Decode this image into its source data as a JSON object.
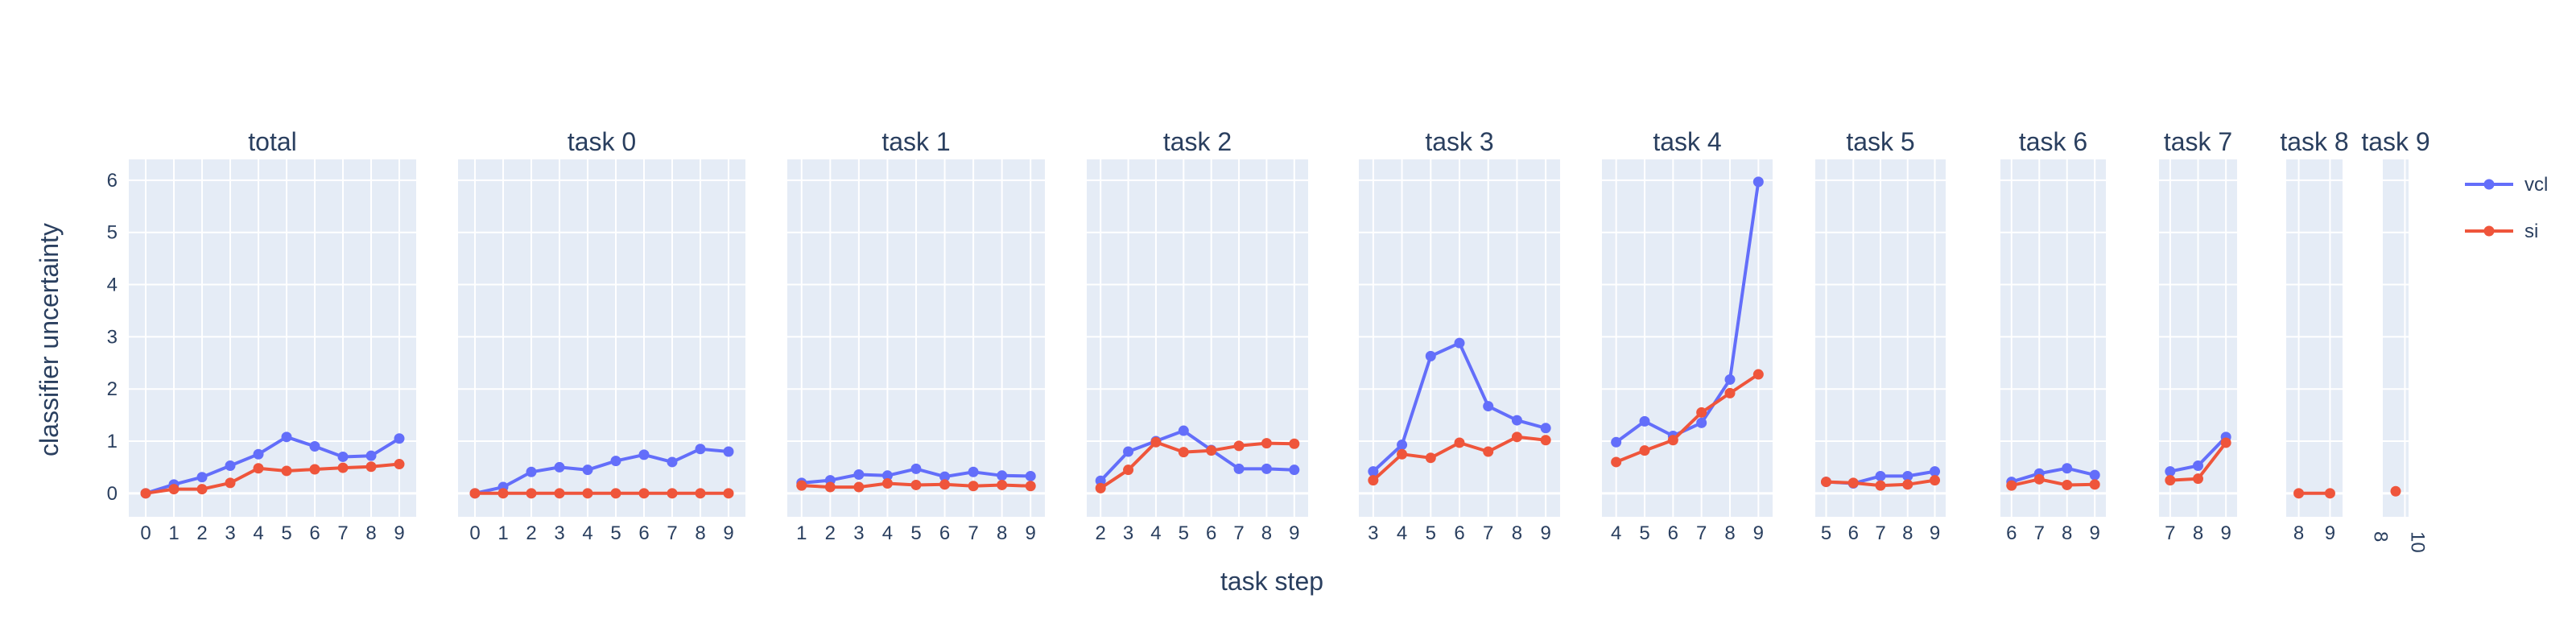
{
  "chart_data": {
    "type": "line",
    "xlabel": "task step",
    "ylabel": "classifier uncertainty",
    "ylim": [
      -0.45,
      6.4
    ],
    "y_ticks": [
      0,
      1,
      2,
      3,
      4,
      5,
      6
    ],
    "grid": true,
    "legend_position": "right",
    "colors": {
      "vcl": "#636efa",
      "si": "#ef553b",
      "panel_bg": "#e5ecf6",
      "text": "#2a3f5f"
    },
    "legend": [
      {
        "name": "vcl"
      },
      {
        "name": "si"
      }
    ],
    "panels": [
      {
        "title": "total",
        "xlim": [
          -0.6,
          9.6
        ],
        "x": [
          0,
          1,
          2,
          3,
          4,
          5,
          6,
          7,
          8,
          9
        ],
        "x_ticks": [
          "0",
          "1",
          "2",
          "3",
          "4",
          "5",
          "6",
          "7",
          "8",
          "9"
        ],
        "series": [
          {
            "name": "vcl",
            "values": [
              0.0,
              0.17,
              0.31,
              0.53,
              0.75,
              1.08,
              0.9,
              0.7,
              0.72,
              1.05
            ]
          },
          {
            "name": "si",
            "values": [
              0.0,
              0.08,
              0.08,
              0.2,
              0.48,
              0.43,
              0.46,
              0.49,
              0.51,
              0.56
            ]
          }
        ]
      },
      {
        "title": "task 0",
        "xlim": [
          -0.6,
          9.6
        ],
        "x": [
          0,
          1,
          2,
          3,
          4,
          5,
          6,
          7,
          8,
          9
        ],
        "x_ticks": [
          "0",
          "1",
          "2",
          "3",
          "4",
          "5",
          "6",
          "7",
          "8",
          "9"
        ],
        "series": [
          {
            "name": "vcl",
            "values": [
              0.0,
              0.12,
              0.41,
              0.5,
              0.45,
              0.62,
              0.74,
              0.6,
              0.85,
              0.8
            ]
          },
          {
            "name": "si",
            "values": [
              0.0,
              0.0,
              0.0,
              0.0,
              0.0,
              0.0,
              0.0,
              0.0,
              0.0,
              0.0
            ]
          }
        ]
      },
      {
        "title": "task 1",
        "xlim": [
          0.5,
          9.5
        ],
        "x": [
          1,
          2,
          3,
          4,
          5,
          6,
          7,
          8,
          9
        ],
        "x_ticks": [
          "1",
          "2",
          "3",
          "4",
          "5",
          "6",
          "7",
          "8",
          "9"
        ],
        "series": [
          {
            "name": "vcl",
            "values": [
              0.2,
              0.25,
              0.36,
              0.34,
              0.47,
              0.32,
              0.41,
              0.34,
              0.33
            ]
          },
          {
            "name": "si",
            "values": [
              0.15,
              0.12,
              0.12,
              0.19,
              0.16,
              0.17,
              0.14,
              0.16,
              0.14
            ]
          }
        ]
      },
      {
        "title": "task 2",
        "xlim": [
          1.5,
          9.5
        ],
        "x": [
          2,
          3,
          4,
          5,
          6,
          7,
          8,
          9
        ],
        "x_ticks": [
          "2",
          "3",
          "4",
          "5",
          "6",
          "7",
          "8",
          "9"
        ],
        "series": [
          {
            "name": "vcl",
            "values": [
              0.24,
              0.8,
              1.0,
              1.2,
              0.83,
              0.47,
              0.47,
              0.45
            ]
          },
          {
            "name": "si",
            "values": [
              0.1,
              0.45,
              0.98,
              0.79,
              0.82,
              0.91,
              0.96,
              0.95
            ]
          }
        ]
      },
      {
        "title": "task 3",
        "xlim": [
          2.5,
          9.5
        ],
        "x": [
          3,
          4,
          5,
          6,
          7,
          8,
          9
        ],
        "x_ticks": [
          "3",
          "4",
          "5",
          "6",
          "7",
          "8",
          "9"
        ],
        "series": [
          {
            "name": "vcl",
            "values": [
              0.42,
              0.93,
              2.63,
              2.88,
              1.67,
              1.4,
              1.25
            ]
          },
          {
            "name": "si",
            "values": [
              0.25,
              0.75,
              0.68,
              0.97,
              0.8,
              1.08,
              1.02
            ]
          }
        ]
      },
      {
        "title": "task 4",
        "xlim": [
          3.5,
          9.5
        ],
        "x": [
          4,
          5,
          6,
          7,
          8,
          9
        ],
        "x_ticks": [
          "4",
          "5",
          "6",
          "7",
          "8",
          "9"
        ],
        "series": [
          {
            "name": "vcl",
            "values": [
              0.98,
              1.38,
              1.1,
              1.35,
              2.18,
              5.97
            ]
          },
          {
            "name": "si",
            "values": [
              0.6,
              0.82,
              1.02,
              1.55,
              1.92,
              2.28
            ]
          }
        ]
      },
      {
        "title": "task 5",
        "xlim": [
          4.6,
          9.4
        ],
        "x": [
          5,
          6,
          7,
          8,
          9
        ],
        "x_ticks": [
          "5",
          "6",
          "7",
          "8",
          "9"
        ],
        "series": [
          {
            "name": "vcl",
            "values": [
              0.22,
              0.19,
              0.33,
              0.33,
              0.42
            ]
          },
          {
            "name": "si",
            "values": [
              0.22,
              0.2,
              0.15,
              0.17,
              0.25
            ]
          }
        ]
      },
      {
        "title": "task 6",
        "xlim": [
          5.6,
          9.4
        ],
        "x": [
          6,
          7,
          8,
          9
        ],
        "x_ticks": [
          "6",
          "7",
          "8",
          "9"
        ],
        "series": [
          {
            "name": "vcl",
            "values": [
              0.22,
              0.38,
              0.48,
              0.35
            ]
          },
          {
            "name": "si",
            "values": [
              0.15,
              0.27,
              0.16,
              0.17
            ]
          }
        ]
      },
      {
        "title": "task 7",
        "xlim": [
          6.6,
          9.4
        ],
        "x": [
          7,
          8,
          9
        ],
        "x_ticks": [
          "7",
          "8",
          "9"
        ],
        "series": [
          {
            "name": "vcl",
            "values": [
              0.42,
              0.53,
              1.08
            ]
          },
          {
            "name": "si",
            "values": [
              0.25,
              0.28,
              0.97
            ]
          }
        ]
      },
      {
        "title": "task 8",
        "xlim": [
          7.6,
          9.4
        ],
        "x": [
          8,
          9
        ],
        "x_ticks": [
          "8",
          "9"
        ],
        "series": [
          {
            "name": "si",
            "values": [
              0.0,
              0.0
            ]
          }
        ]
      },
      {
        "title": "task 9",
        "xlim": [
          8.8,
          10.2
        ],
        "x": [
          9.5
        ],
        "x_ticks": [
          "8",
          "10"
        ],
        "x_tick_values": [
          8,
          10
        ],
        "rotate_ticks": true,
        "series": [
          {
            "name": "si",
            "values": [
              0.04
            ]
          }
        ]
      }
    ]
  }
}
